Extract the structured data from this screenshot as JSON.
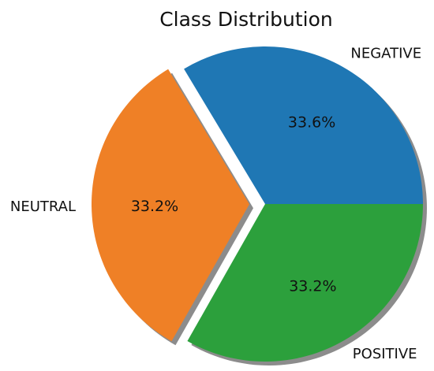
{
  "chart_data": {
    "type": "pie",
    "title": "Class Distribution",
    "categories": [
      "NEGATIVE",
      "NEUTRAL",
      "POSITIVE"
    ],
    "values": [
      33.6,
      33.2,
      33.2
    ],
    "percent_labels": [
      "33.6%",
      "33.2%",
      "33.2%"
    ],
    "colors": [
      "#1f77b4",
      "#ef8026",
      "#2ca03c"
    ],
    "exploded": [
      "NEUTRAL"
    ],
    "shadow": true,
    "start_angle_deg": 0,
    "direction": "counterclockwise"
  }
}
